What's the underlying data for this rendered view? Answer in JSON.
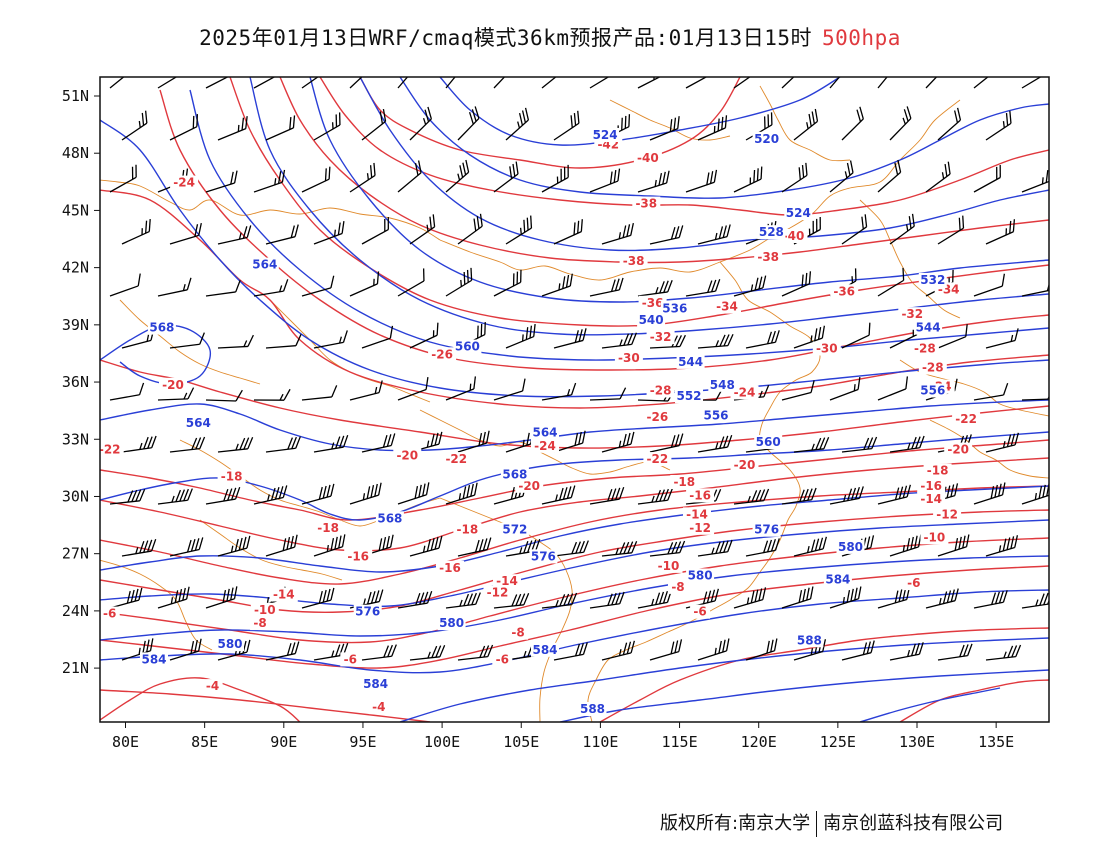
{
  "header": {
    "title": "2025年01月13日WRF/cmaq模式36km预报产品:01月13日15时",
    "level": "500hpa"
  },
  "colors": {
    "height_contour": "#2a3fd6",
    "temperature_contour": "#e0393e",
    "coastline": "#e08a2c",
    "wind_barb": "#000000",
    "level_text": "#e0393e"
  },
  "axes": {
    "lat_labels": [
      "51N",
      "48N",
      "45N",
      "42N",
      "39N",
      "36N",
      "33N",
      "30N",
      "27N",
      "24N",
      "21N"
    ],
    "lon_labels": [
      "80E",
      "85E",
      "90E",
      "95E",
      "100E",
      "105E",
      "110E",
      "115E",
      "120E",
      "125E",
      "130E",
      "135E"
    ],
    "lat_range": [
      18,
      52.5
    ],
    "lon_range": [
      78,
      138
    ]
  },
  "height_labels": [
    {
      "text": "524",
      "lon": 110.3,
      "lat": 48.8
    },
    {
      "text": "520",
      "lon": 120.5,
      "lat": 48.6
    },
    {
      "text": "524",
      "lon": 122.5,
      "lat": 44.7
    },
    {
      "text": "528",
      "lon": 120.8,
      "lat": 43.7
    },
    {
      "text": "532",
      "lon": 131,
      "lat": 41.2
    },
    {
      "text": "564",
      "lon": 88.8,
      "lat": 42
    },
    {
      "text": "568",
      "lon": 82.3,
      "lat": 38.7
    },
    {
      "text": "560",
      "lon": 101.6,
      "lat": 37.7
    },
    {
      "text": "536",
      "lon": 114.7,
      "lat": 39.7
    },
    {
      "text": "540",
      "lon": 113.2,
      "lat": 39.1
    },
    {
      "text": "544",
      "lon": 115.7,
      "lat": 36.9
    },
    {
      "text": "544",
      "lon": 130.7,
      "lat": 38.7
    },
    {
      "text": "548",
      "lon": 117.7,
      "lat": 35.7
    },
    {
      "text": "552",
      "lon": 115.6,
      "lat": 35.1
    },
    {
      "text": "556",
      "lon": 117.3,
      "lat": 34.1
    },
    {
      "text": "556",
      "lon": 131,
      "lat": 35.4
    },
    {
      "text": "564",
      "lon": 84.6,
      "lat": 33.7
    },
    {
      "text": "564",
      "lon": 106.5,
      "lat": 33.2
    },
    {
      "text": "560",
      "lon": 120.6,
      "lat": 32.7
    },
    {
      "text": "568",
      "lon": 104.6,
      "lat": 31
    },
    {
      "text": "568",
      "lon": 96.7,
      "lat": 28.7
    },
    {
      "text": "572",
      "lon": 104.6,
      "lat": 28.1
    },
    {
      "text": "576",
      "lon": 106.4,
      "lat": 26.7
    },
    {
      "text": "576",
      "lon": 120.5,
      "lat": 28.1
    },
    {
      "text": "576",
      "lon": 95.3,
      "lat": 23.8
    },
    {
      "text": "580",
      "lon": 86.6,
      "lat": 22.1
    },
    {
      "text": "580",
      "lon": 100.6,
      "lat": 23.2
    },
    {
      "text": "580",
      "lon": 116.3,
      "lat": 25.7
    },
    {
      "text": "580",
      "lon": 125.8,
      "lat": 27.2
    },
    {
      "text": "584",
      "lon": 81.8,
      "lat": 21.3
    },
    {
      "text": "584",
      "lon": 95.8,
      "lat": 20
    },
    {
      "text": "584",
      "lon": 106.5,
      "lat": 21.8
    },
    {
      "text": "584",
      "lon": 125,
      "lat": 25.5
    },
    {
      "text": "588",
      "lon": 109.5,
      "lat": 18.7
    },
    {
      "text": "588",
      "lon": 123.2,
      "lat": 22.3
    }
  ],
  "temperature_labels": [
    {
      "text": "-42",
      "lon": 110.5,
      "lat": 48.3
    },
    {
      "text": "-40",
      "lon": 113,
      "lat": 47.6
    },
    {
      "text": "-40",
      "lon": 122.2,
      "lat": 43.5
    },
    {
      "text": "-38",
      "lon": 112.9,
      "lat": 45.2
    },
    {
      "text": "-38",
      "lon": 112.1,
      "lat": 42.2
    },
    {
      "text": "-38",
      "lon": 120.6,
      "lat": 42.4
    },
    {
      "text": "-36",
      "lon": 113.3,
      "lat": 40
    },
    {
      "text": "-36",
      "lon": 125.4,
      "lat": 40.6
    },
    {
      "text": "-34",
      "lon": 118,
      "lat": 39.8
    },
    {
      "text": "-34",
      "lon": 132,
      "lat": 40.7
    },
    {
      "text": "-32",
      "lon": 113.8,
      "lat": 38.2
    },
    {
      "text": "-32",
      "lon": 129.7,
      "lat": 39.4
    },
    {
      "text": "-30",
      "lon": 111.8,
      "lat": 37.1
    },
    {
      "text": "-30",
      "lon": 124.3,
      "lat": 37.6
    },
    {
      "text": "-28",
      "lon": 113.8,
      "lat": 35.4
    },
    {
      "text": "-28",
      "lon": 130.5,
      "lat": 37.6
    },
    {
      "text": "-28",
      "lon": 131,
      "lat": 36.6
    },
    {
      "text": "-26",
      "lon": 100,
      "lat": 37.3
    },
    {
      "text": "-26",
      "lon": 113.6,
      "lat": 34
    },
    {
      "text": "-24",
      "lon": 83.7,
      "lat": 46.3
    },
    {
      "text": "-24",
      "lon": 106.5,
      "lat": 32.5
    },
    {
      "text": "-24",
      "lon": 119.1,
      "lat": 35.3
    },
    {
      "text": "-24",
      "lon": 131.5,
      "lat": 35.6
    },
    {
      "text": "-22",
      "lon": 79,
      "lat": 32.3
    },
    {
      "text": "-22",
      "lon": 100.9,
      "lat": 31.8
    },
    {
      "text": "-22",
      "lon": 113.6,
      "lat": 31.8
    },
    {
      "text": "-22",
      "lon": 133.1,
      "lat": 33.9
    },
    {
      "text": "-20",
      "lon": 83,
      "lat": 35.7
    },
    {
      "text": "-20",
      "lon": 97.8,
      "lat": 32
    },
    {
      "text": "-20",
      "lon": 105.5,
      "lat": 30.4
    },
    {
      "text": "-20",
      "lon": 119.1,
      "lat": 31.5
    },
    {
      "text": "-20",
      "lon": 132.6,
      "lat": 32.3
    },
    {
      "text": "-18",
      "lon": 86.7,
      "lat": 30.9
    },
    {
      "text": "-18",
      "lon": 92.8,
      "lat": 28.2
    },
    {
      "text": "-18",
      "lon": 101.6,
      "lat": 28.1
    },
    {
      "text": "-18",
      "lon": 115.3,
      "lat": 30.6
    },
    {
      "text": "-18",
      "lon": 131.3,
      "lat": 31.2
    },
    {
      "text": "-16",
      "lon": 94.7,
      "lat": 26.7
    },
    {
      "text": "-16",
      "lon": 100.5,
      "lat": 26.1
    },
    {
      "text": "-16",
      "lon": 116.3,
      "lat": 29.9
    },
    {
      "text": "-16",
      "lon": 130.9,
      "lat": 30.4
    },
    {
      "text": "-14",
      "lon": 90,
      "lat": 24.7
    },
    {
      "text": "-14",
      "lon": 104.1,
      "lat": 25.4
    },
    {
      "text": "-14",
      "lon": 116.1,
      "lat": 28.9
    },
    {
      "text": "-14",
      "lon": 130.9,
      "lat": 29.7
    },
    {
      "text": "-12",
      "lon": 103.5,
      "lat": 24.8
    },
    {
      "text": "-12",
      "lon": 116.3,
      "lat": 28.2
    },
    {
      "text": "-12",
      "lon": 131.9,
      "lat": 28.9
    },
    {
      "text": "-10",
      "lon": 88.8,
      "lat": 23.9
    },
    {
      "text": "-10",
      "lon": 114.3,
      "lat": 26.2
    },
    {
      "text": "-10",
      "lon": 131.1,
      "lat": 27.7
    },
    {
      "text": "-8",
      "lon": 88.5,
      "lat": 23.2
    },
    {
      "text": "-8",
      "lon": 104.8,
      "lat": 22.7
    },
    {
      "text": "-8",
      "lon": 114.9,
      "lat": 25.1
    },
    {
      "text": "-6",
      "lon": 79,
      "lat": 23.7
    },
    {
      "text": "-6",
      "lon": 94.2,
      "lat": 21.3
    },
    {
      "text": "-6",
      "lon": 103.8,
      "lat": 21.3
    },
    {
      "text": "-6",
      "lon": 116.3,
      "lat": 23.8
    },
    {
      "text": "-6",
      "lon": 129.8,
      "lat": 25.3
    },
    {
      "text": "-4",
      "lon": 85.5,
      "lat": 19.9
    },
    {
      "text": "-4",
      "lon": 96,
      "lat": 18.8
    }
  ],
  "footer": {
    "left_text": "版权所有:南京大学",
    "right_text": "南京创蓝科技有限公司"
  }
}
